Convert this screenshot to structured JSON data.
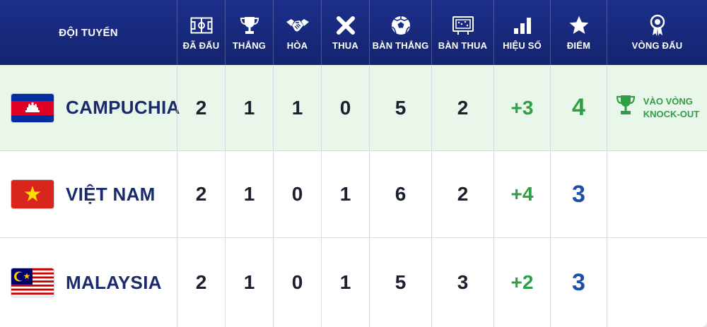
{
  "header": {
    "team": "ĐỘI TUYỂN",
    "columns": [
      {
        "key": "played",
        "label": "ĐÃ ĐẤU",
        "icon": "pitch-icon"
      },
      {
        "key": "won",
        "label": "THẮNG",
        "icon": "trophy-icon"
      },
      {
        "key": "drawn",
        "label": "HÒA",
        "icon": "handshake-icon"
      },
      {
        "key": "lost",
        "label": "THUA",
        "icon": "x-icon"
      },
      {
        "key": "gf",
        "label": "BÀN THẮNG",
        "icon": "soccer-ball-icon"
      },
      {
        "key": "ga",
        "label": "BÀN THUA",
        "icon": "scoreboard-icon"
      },
      {
        "key": "gd",
        "label": "HIỆU SỐ",
        "icon": "bar-chart-icon"
      },
      {
        "key": "pts",
        "label": "ĐIỂM",
        "icon": "star-icon"
      },
      {
        "key": "round",
        "label": "VÒNG ĐẤU",
        "icon": "award-ribbon-icon"
      }
    ]
  },
  "rows": [
    {
      "team": "CAMPUCHIA",
      "flag": "cambodia",
      "played": "2",
      "won": "1",
      "drawn": "1",
      "lost": "0",
      "gf": "5",
      "ga": "2",
      "gd": "+3",
      "pts": "4",
      "status_line1": "VÀO VÒNG",
      "status_line2": "KNOCK-OUT"
    },
    {
      "team": "VIỆT NAM",
      "flag": "vietnam",
      "played": "2",
      "won": "1",
      "drawn": "0",
      "lost": "1",
      "gf": "6",
      "ga": "2",
      "gd": "+4",
      "pts": "3"
    },
    {
      "team": "MALAYSIA",
      "flag": "malaysia",
      "played": "2",
      "won": "1",
      "drawn": "0",
      "lost": "1",
      "gf": "5",
      "ga": "3",
      "gd": "+2",
      "pts": "3"
    }
  ],
  "colors": {
    "header_bg": "#1a2c84",
    "qualified_row_bg": "#e9f6ea",
    "positive_green": "#2f9e44",
    "points_blue": "#1e4fa8",
    "team_name": "#1a2a6b"
  }
}
